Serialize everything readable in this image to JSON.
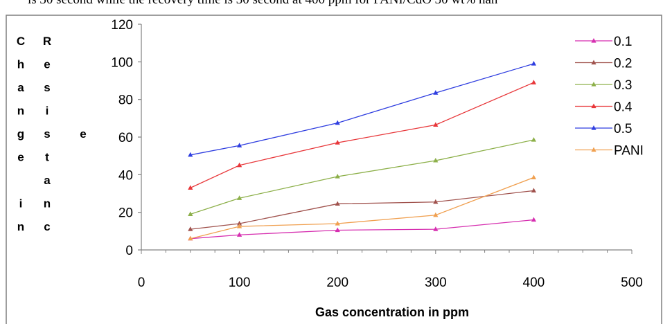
{
  "caption": "is 30 second while the recovery time is 30 second at 400 ppm for PANI/CdO 30 wt% nan",
  "chart_data": {
    "type": "line",
    "xlabel": "Gas concentration in ppm",
    "ylabel_columns": [
      [
        "C",
        "h",
        "a",
        "n",
        "g",
        "e",
        "",
        "i",
        "n"
      ],
      [
        "R",
        "e",
        "s",
        "i",
        "s",
        "t",
        "a",
        "n",
        "c"
      ],
      [
        "",
        "",
        "",
        "",
        "e"
      ]
    ],
    "xlim": [
      0,
      500
    ],
    "ylim": [
      0,
      120
    ],
    "xticks": [
      "0",
      "100",
      "200",
      "300",
      "400",
      "500"
    ],
    "yticks": [
      "0",
      "20",
      "40",
      "60",
      "80",
      "100",
      "120"
    ],
    "x": [
      50,
      100,
      200,
      300,
      400
    ],
    "grid": false,
    "legend_position": "right",
    "series": [
      {
        "name": "0.1",
        "color": "#d62fb0",
        "values": [
          6,
          8,
          10.5,
          11,
          16
        ]
      },
      {
        "name": "0.2",
        "color": "#a0524d",
        "values": [
          11,
          14,
          24.5,
          25.5,
          31.5
        ]
      },
      {
        "name": "0.3",
        "color": "#8db04a",
        "values": [
          19,
          27.5,
          39,
          47.5,
          58.5
        ]
      },
      {
        "name": "0.4",
        "color": "#e8373a",
        "values": [
          33,
          45,
          57,
          66.5,
          89
        ]
      },
      {
        "name": "0.5",
        "color": "#2f3ee0",
        "values": [
          50.5,
          55.5,
          67.5,
          83.5,
          99
        ]
      },
      {
        "name": "PANI",
        "color": "#f0a050",
        "values": [
          6,
          12.5,
          14,
          18.5,
          38.5
        ]
      }
    ]
  }
}
